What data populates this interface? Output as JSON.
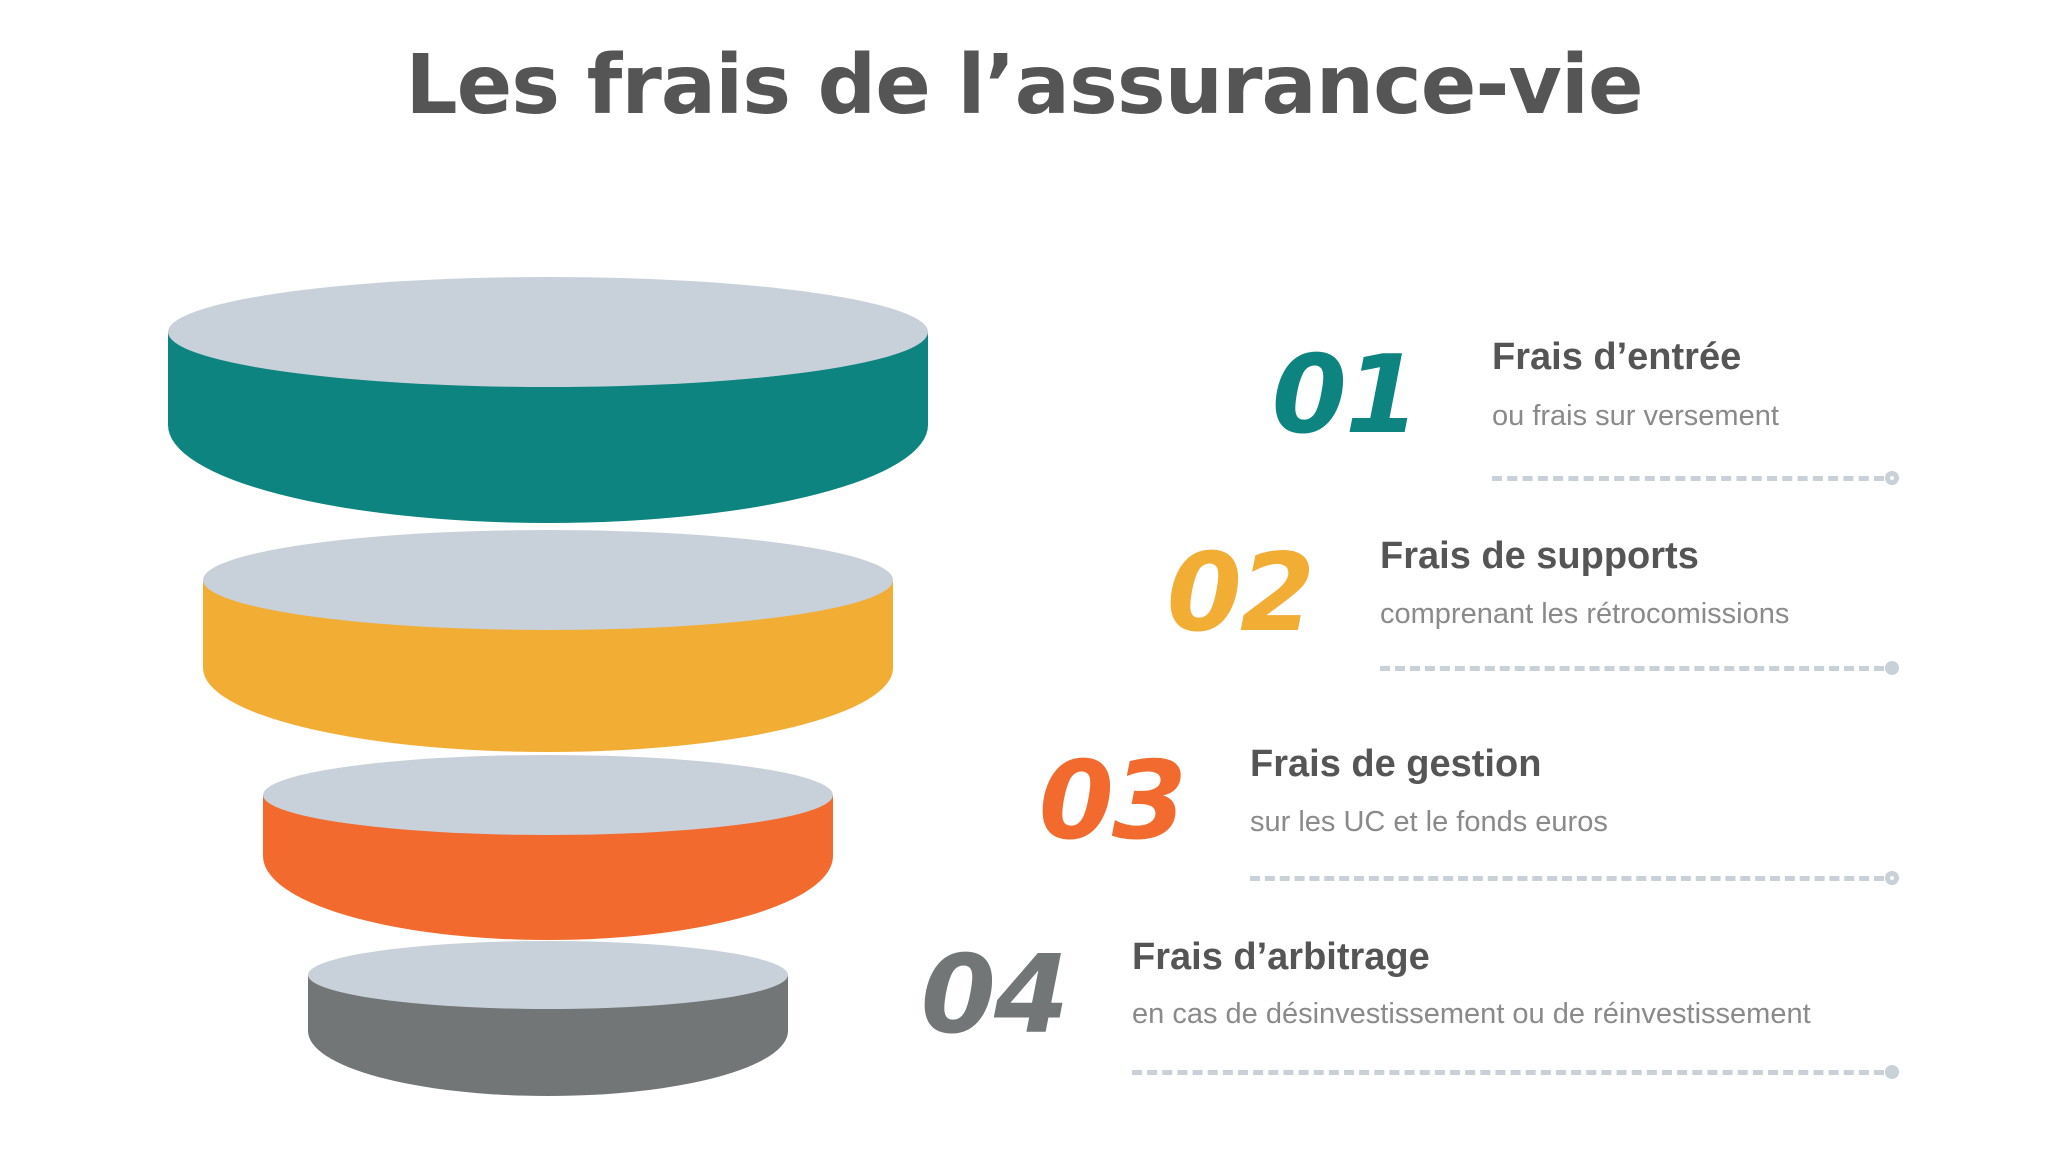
{
  "title": "Les frais de l’assurance-vie",
  "colors": {
    "top_face": "#c8d1da",
    "title_text": "#555555",
    "line": "#c8d0d8"
  },
  "steps": [
    {
      "number": "01",
      "title": "Frais d’entrée",
      "description": "ou frais sur versement",
      "color": "#0e8480",
      "dot": "hollow"
    },
    {
      "number": "02",
      "title": "Frais de supports",
      "description": "comprenant les rétrocomissions",
      "color": "#f2ad35",
      "dot": "filled"
    },
    {
      "number": "03",
      "title": "Frais de gestion",
      "description": "sur les UC et le fonds euros",
      "color": "#f26a2d",
      "dot": "hollow"
    },
    {
      "number": "04",
      "title": "Frais d’arbitrage",
      "description": "en cas de désinvestissement ou de réinvestissement",
      "color": "#737676",
      "dot": "filled"
    }
  ]
}
